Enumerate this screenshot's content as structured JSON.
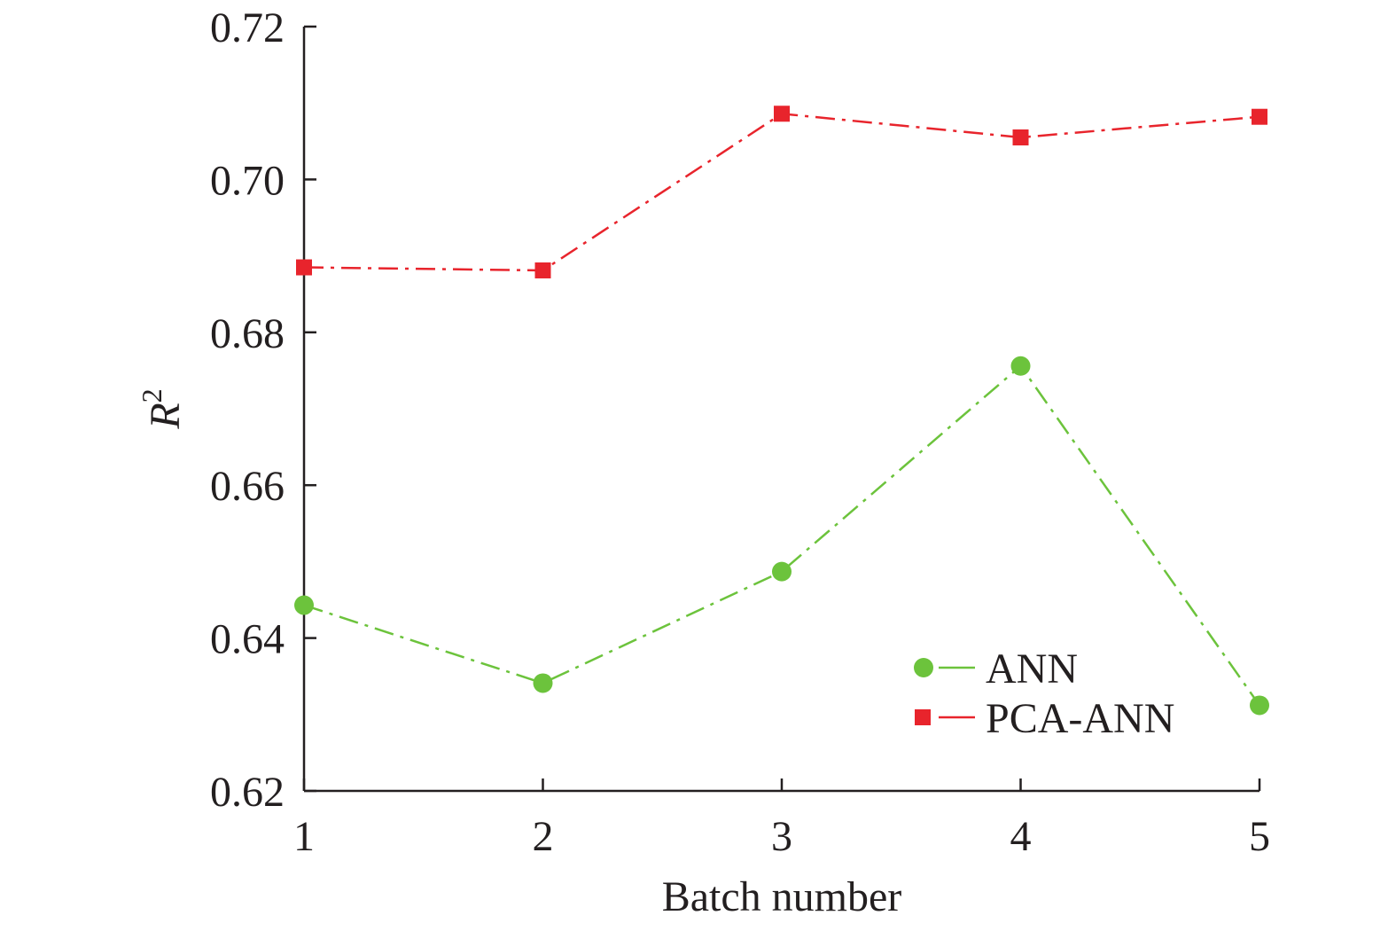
{
  "chart_data": {
    "type": "line",
    "title": "",
    "xlabel": "Batch number",
    "ylabel_base": "R",
    "ylabel_sup": "2",
    "x": [
      1,
      2,
      3,
      4,
      5
    ],
    "x_ticks": [
      "1",
      "2",
      "3",
      "4",
      "5"
    ],
    "xlim": [
      1,
      5
    ],
    "ylim": [
      0.62,
      0.72
    ],
    "y_ticks": [
      "0.62",
      "0.64",
      "0.66",
      "0.68",
      "0.70",
      "0.72"
    ],
    "grid": false,
    "legend_position": "bottom-right",
    "series": [
      {
        "name": "ANN",
        "values": [
          0.6443,
          0.6341,
          0.6487,
          0.6756,
          0.6312
        ],
        "color": "#6cc33c",
        "marker": "circle",
        "line_style": "dash-dot"
      },
      {
        "name": "PCA-ANN",
        "values": [
          0.6885,
          0.6881,
          0.7086,
          0.7055,
          0.7082
        ],
        "color": "#e8242c",
        "marker": "square",
        "line_style": "dash-dot"
      }
    ]
  }
}
